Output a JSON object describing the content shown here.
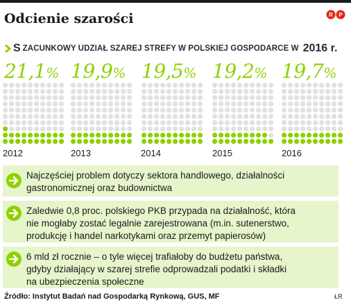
{
  "header": {
    "title": "Odcienie szarości",
    "logo": "RP"
  },
  "subtitle": {
    "first_big": "S",
    "rest_small": "ZACUNKOWY UDZIAŁ SZAREJ STREFY W POLSKIEJ GOSPODARCE W",
    "year": "2016 r."
  },
  "chart_data": {
    "type": "waffle",
    "title": "Szacunkowy udział szarej strefy w polskiej gospodarce w 2016 r.",
    "categories": [
      "2012",
      "2013",
      "2014",
      "2015",
      "2016"
    ],
    "values": [
      21.1,
      19.9,
      19.5,
      19.2,
      19.7
    ],
    "value_labels": [
      {
        "num": "21,1",
        "unit": "%"
      },
      {
        "num": "19,9",
        "unit": "%"
      },
      {
        "num": "19,5",
        "unit": "%"
      },
      {
        "num": "19,2",
        "unit": "%"
      },
      {
        "num": "19,7",
        "unit": "%"
      }
    ],
    "ylim": [
      0,
      100
    ],
    "colors": {
      "filled": "#8ed100",
      "empty": "#e1e1e1",
      "pct_text": "#8ed100"
    }
  },
  "notes": [
    {
      "lines": [
        "Najczęściej problem dotyczy sektora handlowego, działalności",
        "gastronomicznej oraz budownictwa"
      ]
    },
    {
      "lines": [
        "Zaledwie 0,8 proc. polskiego PKB przypada na działalność, która",
        "nie mogłaby zostać legalnie zarejestrowana (m.in. sutenerstwo,",
        "produkcję i handel narkotykami oraz przemyt papierosów)"
      ]
    },
    {
      "lines": [
        "6 mld zł rocznie – o tyle więcej trafiałoby do budżetu państwa,",
        "gdyby działający w szarej strefie odprowadzali podatki i składki",
        "na ubezpieczenia społeczne"
      ]
    }
  ],
  "colors": {
    "accent": "#8ed100",
    "note_bg": "#e6f5cc",
    "text": "#1a1a1a"
  },
  "footer": {
    "source": "Źródło: Instytut Badań nad Gospodarką Rynkową, GUS, MF",
    "credit": "ŁR"
  }
}
